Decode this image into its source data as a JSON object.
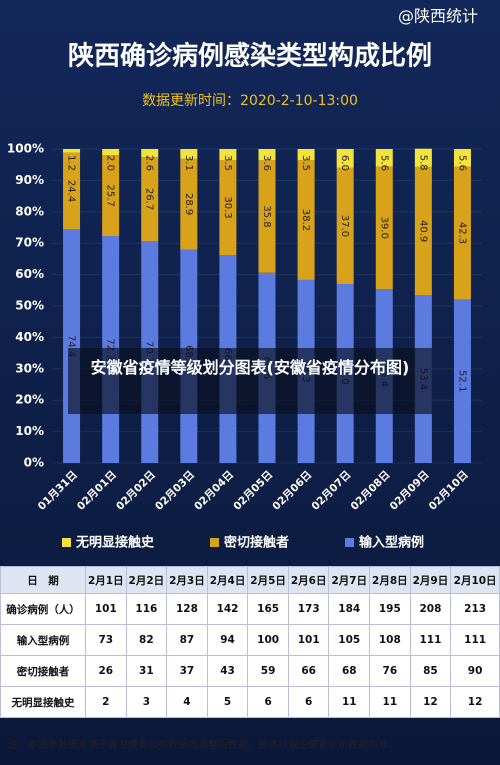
{
  "watermark": "@陕西统计",
  "chart_data": {
    "type": "stacked_bar",
    "title": "陕西确诊病例感染类型构成比例",
    "subtitle": "数据更新时间：2020-2-10-13:00",
    "categories": [
      "01月31日",
      "02月01日",
      "02月02日",
      "02月03日",
      "02月04日",
      "02月05日",
      "02月06日",
      "02月07日",
      "02月08日",
      "02月09日",
      "02月10日"
    ],
    "series": [
      {
        "name": "输入型病例",
        "color": "#5b7be0",
        "values": [
          74.4,
          72.3,
          70.7,
          68,
          66.2,
          60.6,
          58.3,
          57,
          55.4,
          53.4,
          52.1
        ],
        "value_labels": [
          "74.4",
          "72.3",
          "70.7",
          "68.0",
          "66.2",
          "60.6",
          "58.3",
          "57.0",
          "55.4",
          "53.4",
          "52.1"
        ]
      },
      {
        "name": "密切接触者",
        "color": "#d9a21b",
        "values": [
          24.4,
          25.7,
          26.7,
          28.9,
          30.3,
          35.8,
          38.2,
          37,
          39,
          40.9,
          42.3
        ],
        "value_labels": [
          "24.4",
          "25.7",
          "26.7",
          "28.9",
          "30.3",
          "35.8",
          "38.2",
          "37.0",
          "39.0",
          "40.9",
          "42.3"
        ]
      },
      {
        "name": "无明显接触史",
        "color": "#f5e23a",
        "values": [
          1.2,
          2,
          2.6,
          3.1,
          3.5,
          3.6,
          3.5,
          6,
          5.6,
          5.8,
          5.6
        ],
        "value_labels": [
          "1.2",
          "2.0",
          "2.6",
          "3.1",
          "3.5",
          "3.6",
          "3.5",
          "6.0",
          "5.6",
          "5.8",
          "5.6"
        ]
      }
    ],
    "ylim": [
      0,
      100
    ],
    "yticks": [
      {
        "value": 0,
        "label": "0%"
      },
      {
        "value": 10,
        "label": "10%"
      },
      {
        "value": 20,
        "label": "20%"
      },
      {
        "value": 30,
        "label": "30%"
      },
      {
        "value": 40,
        "label": "40%"
      },
      {
        "value": 50,
        "label": "50%"
      },
      {
        "value": 60,
        "label": "60%"
      },
      {
        "value": 70,
        "label": "70%"
      },
      {
        "value": 80,
        "label": "80%"
      },
      {
        "value": 90,
        "label": "90%"
      },
      {
        "value": 100,
        "label": "100%"
      }
    ],
    "legend": "bottom"
  },
  "overlay": "安徽省疫情等级划分图表(安徽省疫情分布图)",
  "table": {
    "header": [
      "日　期",
      "2月1日",
      "2月2日",
      "2月3日",
      "2月4日",
      "2月5日",
      "2月6日",
      "2月7日",
      "2月8日",
      "2月9日",
      "2月10日"
    ],
    "rows": [
      [
        "确诊病例（人）",
        "101",
        "116",
        "128",
        "142",
        "165",
        "173",
        "184",
        "195",
        "208",
        "213"
      ],
      [
        "输入型病例",
        "73",
        "82",
        "87",
        "94",
        "100",
        "101",
        "105",
        "108",
        "111",
        "111"
      ],
      [
        "密切接触者",
        "26",
        "31",
        "37",
        "43",
        "59",
        "66",
        "68",
        "76",
        "85",
        "90"
      ],
      [
        "无明显接触史",
        "2",
        "3",
        "4",
        "5",
        "6",
        "6",
        "11",
        "11",
        "12",
        "12"
      ]
    ]
  },
  "note": "注：本图表数据来源于省卫健委公布数据或调整后数据，最终以省卫健委公布数据为准。"
}
